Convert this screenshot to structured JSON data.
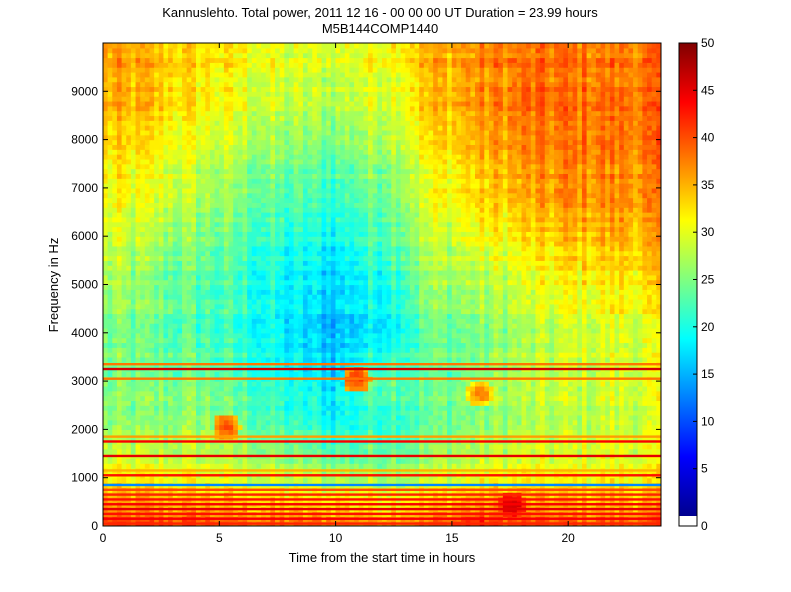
{
  "chart_data": {
    "type": "heatmap",
    "title_line1": "Kannuslehto. Total power, 2011 12 16 - 00 00 00 UT  Duration = 23.99 hours",
    "title_line2": "M5B144COMP1440",
    "xlabel": "Time from the start time in hours",
    "ylabel": "Frequency in Hz",
    "xlim": [
      0,
      23.99
    ],
    "ylim": [
      0,
      10000
    ],
    "x_ticks": [
      0,
      5,
      10,
      15,
      20
    ],
    "x_tick_labels": [
      "0",
      "5",
      "10",
      "15",
      "20"
    ],
    "y_ticks": [
      0,
      1000,
      2000,
      3000,
      4000,
      5000,
      6000,
      7000,
      8000,
      9000
    ],
    "y_tick_labels": [
      "0",
      "1000",
      "2000",
      "3000",
      "4000",
      "5000",
      "6000",
      "7000",
      "8000",
      "9000"
    ],
    "colorbar": {
      "range": [
        0,
        50
      ],
      "ticks": [
        0,
        5,
        10,
        15,
        20,
        25,
        30,
        35,
        40,
        45,
        50
      ],
      "tick_labels": [
        "0",
        "5",
        "10",
        "15",
        "20",
        "25",
        "30",
        "35",
        "40",
        "45",
        "50"
      ],
      "colormap": "jet",
      "below_min_color": "#ffffff"
    },
    "approx_power_field": {
      "description_units": "relative power on colorbar scale",
      "time_hours": [
        0,
        2,
        4,
        6,
        8,
        10,
        12,
        14,
        16,
        18,
        20,
        22,
        24
      ],
      "freq_hz": [
        0,
        1000,
        2000,
        3000,
        4000,
        5000,
        6000,
        7000,
        8000,
        9000,
        10000
      ],
      "values": [
        [
          40,
          40,
          40,
          39,
          38,
          38,
          37,
          38,
          42,
          40,
          39,
          39,
          39
        ],
        [
          31,
          31,
          30,
          29,
          28,
          27,
          27,
          28,
          30,
          31,
          31,
          31,
          31
        ],
        [
          26,
          26,
          27,
          25,
          22,
          20,
          22,
          24,
          26,
          27,
          28,
          29,
          29
        ],
        [
          24,
          24,
          24,
          22,
          19,
          17,
          24,
          23,
          25,
          27,
          28,
          29,
          29
        ],
        [
          25,
          24,
          23,
          21,
          18,
          16,
          19,
          24,
          25,
          27,
          29,
          30,
          30
        ],
        [
          27,
          25,
          23,
          21,
          18,
          17,
          20,
          26,
          27,
          29,
          31,
          32,
          32
        ],
        [
          29,
          27,
          25,
          23,
          20,
          19,
          23,
          28,
          30,
          32,
          34,
          35,
          35
        ],
        [
          31,
          30,
          28,
          25,
          23,
          22,
          25,
          30,
          33,
          35,
          37,
          37,
          37
        ],
        [
          33,
          32,
          30,
          28,
          26,
          25,
          28,
          32,
          35,
          37,
          38,
          38,
          38
        ],
        [
          35,
          34,
          32,
          30,
          28,
          28,
          30,
          34,
          36,
          38,
          38,
          38,
          38
        ],
        [
          36,
          35,
          33,
          32,
          30,
          30,
          32,
          35,
          37,
          38,
          38,
          38,
          38
        ]
      ]
    },
    "horizontal_lines": [
      {
        "freq_hz": 50,
        "value": 42
      },
      {
        "freq_hz": 150,
        "value": 44
      },
      {
        "freq_hz": 250,
        "value": 43
      },
      {
        "freq_hz": 350,
        "value": 45
      },
      {
        "freq_hz": 450,
        "value": 44
      },
      {
        "freq_hz": 550,
        "value": 43
      },
      {
        "freq_hz": 650,
        "value": 42
      },
      {
        "freq_hz": 750,
        "value": 40
      },
      {
        "freq_hz": 850,
        "value": 13
      },
      {
        "freq_hz": 1050,
        "value": 43
      },
      {
        "freq_hz": 1150,
        "value": 35
      },
      {
        "freq_hz": 1450,
        "value": 45
      },
      {
        "freq_hz": 1750,
        "value": 44
      },
      {
        "freq_hz": 1850,
        "value": 36
      },
      {
        "freq_hz": 3050,
        "value": 38
      },
      {
        "freq_hz": 3250,
        "value": 46
      },
      {
        "freq_hz": 3350,
        "value": 38
      }
    ],
    "hot_spots": [
      {
        "time_hours": 5.3,
        "freq_hz": 2050,
        "value": 40
      },
      {
        "time_hours": 10.9,
        "freq_hz": 3050,
        "value": 41
      },
      {
        "time_hours": 16.2,
        "freq_hz": 2750,
        "value": 37
      },
      {
        "time_hours": 17.6,
        "freq_hz": 450,
        "value": 46
      }
    ]
  }
}
